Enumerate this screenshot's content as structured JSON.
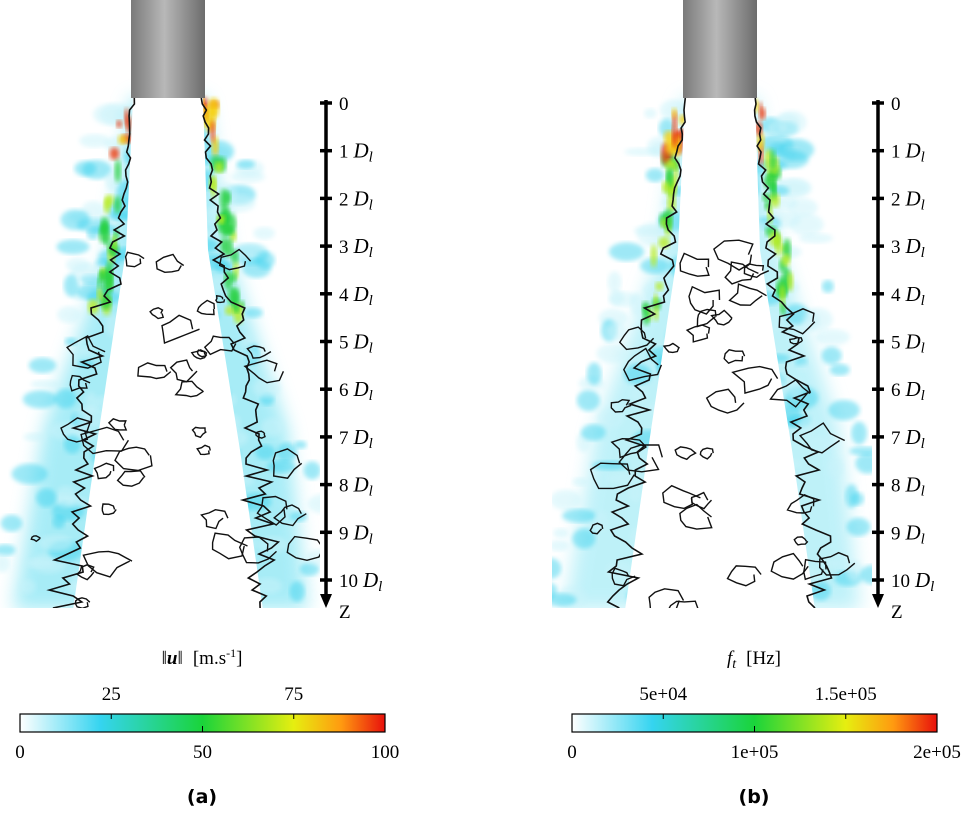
{
  "panels": [
    {
      "caption": "(a)",
      "axis": {
        "ticks": [
          0,
          1,
          2,
          3,
          4,
          5,
          6,
          7,
          8,
          9,
          10
        ],
        "unit_symbol": "D",
        "unit_subscript": "l",
        "label": "Z"
      },
      "colorbar": {
        "norm": "‖",
        "symbol": "u",
        "unit": "[m.s",
        "exponent": "-1",
        "unit_close": "]",
        "lim": [
          0,
          100
        ],
        "ticks": [
          0,
          25,
          50,
          75,
          100
        ]
      }
    },
    {
      "caption": "(b)",
      "axis": {
        "ticks": [
          0,
          1,
          2,
          3,
          4,
          5,
          6,
          7,
          8,
          9,
          10
        ],
        "unit_symbol": "D",
        "unit_subscript": "l",
        "label": "Z"
      },
      "colorbar": {
        "symbol": "f",
        "subscript": "t",
        "unit": "[Hz]",
        "lim": [
          0,
          200000
        ],
        "ticks": [
          0,
          {
            "value": 50000,
            "label": "5e+04"
          },
          {
            "value": 100000,
            "label": "1e+05"
          },
          {
            "value": 150000,
            "label": "1.5e+05"
          },
          {
            "value": 200000,
            "label": "2e+05"
          }
        ]
      }
    }
  ]
}
